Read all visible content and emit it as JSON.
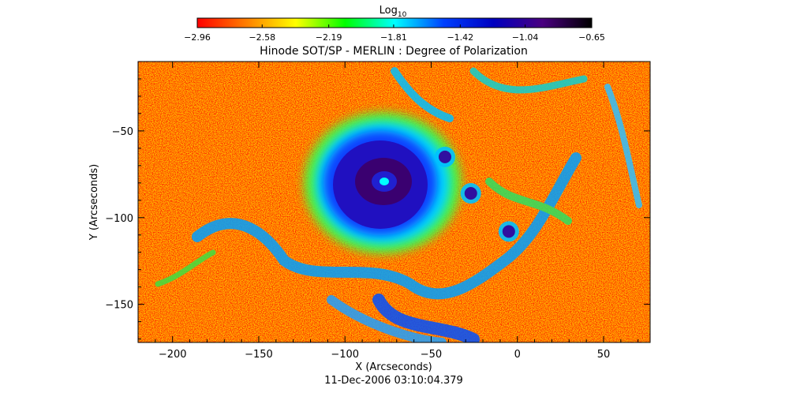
{
  "chart_data": {
    "type": "heatmap",
    "title": "Hinode SOT/SP - MERLIN : Degree of Polarization",
    "xlabel": "X (Arcseconds)",
    "ylabel": "Y (Arcseconds)",
    "date_label": "11-Dec-2006 03:10:04.379",
    "xlim": [
      -220,
      77
    ],
    "ylim": [
      -172,
      -10
    ],
    "x_ticks": [
      -200,
      -150,
      -100,
      -50,
      0,
      50
    ],
    "y_ticks": [
      -50,
      -100,
      -150
    ],
    "colorbar": {
      "title": "Log",
      "title_subscript": "10",
      "range": [
        -2.96,
        -0.65
      ],
      "ticks": [
        -2.96,
        -2.58,
        -2.19,
        -1.81,
        -1.42,
        -1.04,
        -0.65
      ],
      "colormap": [
        "#ff0000",
        "#ff7f00",
        "#ffff00",
        "#00ff00",
        "#00ffff",
        "#0040ff",
        "#0000c0",
        "#4a0080",
        "#000000"
      ]
    },
    "features": [
      {
        "name": "sunspot umbra",
        "x": -75,
        "y": -82,
        "log_value": -0.75
      },
      {
        "name": "penumbra",
        "x": -75,
        "y": -80,
        "log_value": -1.1
      },
      {
        "name": "pore",
        "x": -27,
        "y": -86,
        "log_value": -1.0
      },
      {
        "name": "pore",
        "x": -5,
        "y": -108,
        "log_value": -1.0
      },
      {
        "name": "pore",
        "x": -42,
        "y": -65,
        "log_value": -1.0
      }
    ],
    "background_log_value": -2.9
  }
}
